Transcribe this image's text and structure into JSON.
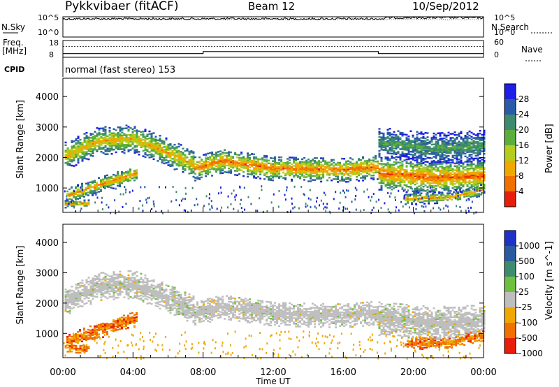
{
  "header": {
    "station": "Pykkvibaer (fitACF)",
    "beam": "Beam 12",
    "date": "10/Sep/2012"
  },
  "chart_data": [
    {
      "type": "line",
      "panel": "sky-noise",
      "left_label": "N.Sky",
      "right_label": "N.Search",
      "left_ticks": [
        "10^5",
        "10^0"
      ],
      "right_ticks": [
        "10^5",
        "10^0"
      ],
      "y_log": true,
      "left_series_level": 4.5,
      "right_series_level": 4.3
    },
    {
      "type": "line",
      "panel": "frequency-nave",
      "left_label": "Freq.",
      "left_unit": "[MHz]",
      "right_label": "Nave",
      "left_ticks": [
        18,
        8
      ],
      "right_ticks": [
        60,
        0
      ],
      "ylim": [
        8,
        18
      ],
      "right_ylim": [
        0,
        60
      ],
      "freq_segments": [
        {
          "x": [
            0,
            8
          ],
          "freq": 10.2
        },
        {
          "x": [
            8,
            18
          ],
          "freq": 11.4
        },
        {
          "x": [
            18,
            24
          ],
          "freq": 10.2
        }
      ],
      "nave_level": 39
    },
    {
      "type": "table",
      "panel": "cpid",
      "label": "CPID",
      "mode": "normal (fast stereo) 153"
    },
    {
      "type": "heatmap",
      "panel": "power",
      "ylabel": "Slant Range [km]",
      "ylim": [
        200,
        4600
      ],
      "y_ticks": [
        1000,
        2000,
        3000,
        4000
      ],
      "colorbar_label": "Power [dB]",
      "colorbar_ticks": [
        4,
        8,
        12,
        16,
        20,
        24,
        28
      ],
      "colorbar_range": [
        0,
        32
      ],
      "colors": [
        "#1e1ee6",
        "#2a5aa8",
        "#3d8a6e",
        "#5cae3c",
        "#b4cc1c",
        "#f0a800",
        "#f07000",
        "#e81e0a"
      ],
      "bands": [
        {
          "start": 0.1,
          "end": 7.5,
          "center_nodes": [
            [
              0.1,
              2050
            ],
            [
              2,
              2550
            ],
            [
              4,
              2620
            ],
            [
              6,
              2150
            ],
            [
              7.5,
              1750
            ]
          ],
          "width_km": 450,
          "peak_db": 22
        },
        {
          "start": 7.5,
          "end": 18,
          "center_nodes": [
            [
              7.5,
              1650
            ],
            [
              9,
              1900
            ],
            [
              12,
              1650
            ],
            [
              16,
              1600
            ],
            [
              18,
              1700
            ]
          ],
          "width_km": 400,
          "peak_db": 26
        },
        {
          "start": 18,
          "end": 24,
          "center_nodes": [
            [
              18,
              1500
            ],
            [
              21,
              1350
            ],
            [
              24,
              1400
            ]
          ],
          "width_km": 550,
          "peak_db": 27
        },
        {
          "start": 18,
          "end": 24,
          "center_nodes": [
            [
              18,
              2500
            ],
            [
              21,
              2300
            ],
            [
              24,
              2400
            ]
          ],
          "width_km": 500,
          "peak_db": 12
        },
        {
          "start": 0.2,
          "end": 4.2,
          "center_nodes": [
            [
              0.2,
              750
            ],
            [
              2,
              1100
            ],
            [
              4.2,
              1500
            ]
          ],
          "width_km": 260,
          "peak_db": 24
        },
        {
          "start": 0.1,
          "end": 1.5,
          "center_nodes": [
            [
              0.1,
              480
            ],
            [
              1.5,
              500
            ]
          ],
          "width_km": 120,
          "peak_db": 26
        },
        {
          "start": 19.5,
          "end": 24,
          "center_nodes": [
            [
              19.5,
              650
            ],
            [
              22,
              700
            ],
            [
              24,
              950
            ]
          ],
          "width_km": 180,
          "peak_db": 24
        }
      ]
    },
    {
      "type": "heatmap",
      "panel": "velocity",
      "ylabel": "Slant Range [km]",
      "ylim": [
        200,
        4600
      ],
      "y_ticks": [
        1000,
        2000,
        3000,
        4000
      ],
      "colorbar_label": "Velocity [m s^-1]",
      "colorbar_ticks": [
        1000,
        500,
        100,
        25,
        -25,
        -100,
        -500,
        -1000
      ],
      "colors": [
        "#1e32c8",
        "#2a5aa0",
        "#3e8c6e",
        "#70c040",
        "#bebebe",
        "#f0a800",
        "#f07000",
        "#e81e0a"
      ],
      "bands": [
        {
          "start": 0.1,
          "end": 7.5,
          "center_nodes": [
            [
              0.1,
              2050
            ],
            [
              2,
              2550
            ],
            [
              4,
              2620
            ],
            [
              6,
              2150
            ],
            [
              7.5,
              1750
            ]
          ],
          "width_km": 450,
          "velocity": 0
        },
        {
          "start": 7.5,
          "end": 18,
          "center_nodes": [
            [
              7.5,
              1650
            ],
            [
              9,
              1900
            ],
            [
              12,
              1650
            ],
            [
              16,
              1600
            ],
            [
              18,
              1700
            ]
          ],
          "width_km": 400,
          "velocity": 0
        },
        {
          "start": 18,
          "end": 24,
          "center_nodes": [
            [
              18,
              1500
            ],
            [
              21,
              1350
            ],
            [
              24,
              1400
            ]
          ],
          "width_km": 550,
          "velocity": 0
        },
        {
          "start": 0.2,
          "end": 4.2,
          "center_nodes": [
            [
              0.2,
              750
            ],
            [
              2,
              1100
            ],
            [
              4.2,
              1500
            ]
          ],
          "width_km": 260,
          "velocity": -200
        },
        {
          "start": 0.1,
          "end": 1.5,
          "center_nodes": [
            [
              0.1,
              480
            ],
            [
              1.5,
              500
            ]
          ],
          "width_km": 120,
          "velocity": -200
        },
        {
          "start": 19.5,
          "end": 24,
          "center_nodes": [
            [
              19.5,
              650
            ],
            [
              22,
              700
            ],
            [
              24,
              950
            ]
          ],
          "width_km": 180,
          "velocity": -300
        }
      ]
    }
  ],
  "time_axis": {
    "xlabel": "Time UT",
    "ticks": [
      "00:00",
      "04:00",
      "08:00",
      "12:00",
      "16:00",
      "20:00",
      "00:00"
    ],
    "range_hours": [
      0,
      24
    ]
  }
}
